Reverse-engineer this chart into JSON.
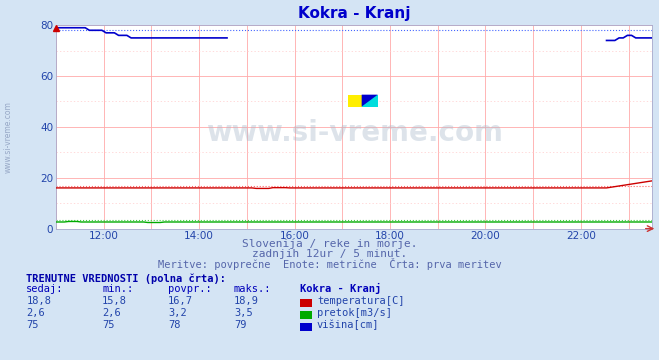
{
  "title": "Kokra - Kranj",
  "title_color": "#0000cc",
  "bg_color": "#d4e4f4",
  "plot_bg_color": "#ffffff",
  "xlim_hours": [
    11.0,
    23.5
  ],
  "ylim": [
    0,
    80
  ],
  "yticks": [
    0,
    20,
    40,
    60,
    80
  ],
  "xtick_labels": [
    "12:00",
    "14:00",
    "16:00",
    "18:00",
    "20:00",
    "22:00"
  ],
  "xtick_positions": [
    12,
    14,
    16,
    18,
    20,
    22
  ],
  "grid_x_positions": [
    11,
    12,
    13,
    14,
    15,
    16,
    17,
    18,
    19,
    20,
    21,
    22,
    23
  ],
  "grid_color_major": "#ffaaaa",
  "grid_color_minor": "#ffcccc",
  "watermark_text": "www.si-vreme.com",
  "subtitle1": "Slovenija / reke in morje.",
  "subtitle2": "zadnjih 12ur / 5 minut.",
  "subtitle3": "Meritve: povprečne  Enote: metrične  Črta: prva meritev",
  "subtitle_color": "#5566aa",
  "sidebar_text": "www.si-vreme.com",
  "table_header_color": "#0000bb",
  "table_color": "#2244aa",
  "table_bold_color": "#0000aa",
  "temp_color": "#cc0000",
  "flow_color": "#00aa00",
  "height_color": "#0000cc",
  "temp_dotted_color": "#ff6666",
  "flow_dotted_color": "#44cc44",
  "height_dotted_color": "#4466ff",
  "n_points": 144,
  "temp_base": 16.0,
  "temp_end": 18.8,
  "temp_min": 15.8,
  "temp_max": 18.9,
  "temp_avg": 16.7,
  "flow_base": 2.6,
  "flow_max": 3.5,
  "flow_avg": 3.2,
  "height_base": 79,
  "height_min": 75,
  "height_max": 79,
  "height_avg": 78
}
